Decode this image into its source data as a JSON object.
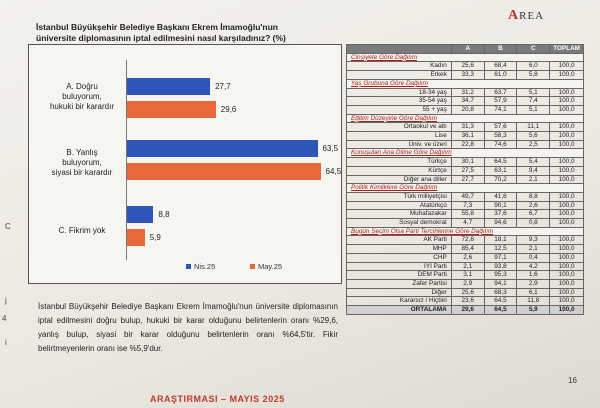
{
  "logo": {
    "mark": "A",
    "text": "REA"
  },
  "question": {
    "line1": "İstanbul Büyükşehir Belediye Başkanı Ekrem İmamoğlu'nun",
    "line2": "üniversite diplomasının iptal edilmesini nasıl karşıladınız? (%)"
  },
  "chart_data": {
    "type": "bar",
    "orientation": "horizontal",
    "categories": [
      "A. Doğru bulunuyorum, hukuki bir karardır",
      "B. Yanlış buluyorum, siyasi bir karardır",
      "C. Fikrim yok"
    ],
    "series": [
      {
        "name": "Nis.25",
        "color": "#2e56b8",
        "values": [
          27.7,
          63.5,
          8.8
        ]
      },
      {
        "name": "May.25",
        "color": "#e8683a",
        "values": [
          29.6,
          64.5,
          5.9
        ]
      }
    ],
    "category_lines": [
      [
        "A. Doğru",
        "buluyorum,",
        "hukuki bir karardır"
      ],
      [
        "B. Yanlış",
        "buluyorum,",
        "siyasi bir karardır"
      ],
      [
        "C. Fikrim yok"
      ]
    ],
    "value_labels": [
      [
        "27,7",
        "29,6"
      ],
      [
        "63,5",
        "64,5"
      ],
      [
        "8,8",
        "5,9"
      ]
    ],
    "legend": [
      "Nis.25",
      "May.25"
    ],
    "xlim": [
      0,
      70
    ]
  },
  "paragraph": "İstanbul Büyükşehir Belediye Başkanı Ekrem İmamoğlu'nun üniversite diplomasının iptal edilmesini doğru bulup, hukuki bir karar olduğunu belirtenlerin oranı %29,6, yanlış bulup, siyasi bir karar olduğunu belirtenlerin oranı %64,5'tir. Fikir belirtmeyenlerin oranı ise %5,9'dur.",
  "side_marks": [
    "C",
    "j",
    "4",
    "i"
  ],
  "footer": "ARAŞTIRMASI – MAYIS 2025",
  "page_number": "16",
  "table": {
    "headers": [
      "",
      "A",
      "B",
      "C",
      "TOPLAM"
    ],
    "rows": [
      {
        "section": "Cinsiyete Göre Dağılım"
      },
      {
        "cells": [
          "Kadın",
          "25,6",
          "68,4",
          "6,0",
          "100,0"
        ]
      },
      {
        "cells": [
          "Erkek",
          "33,3",
          "61,0",
          "5,8",
          "100,0"
        ]
      },
      {
        "section": "Yaş Grubuna Göre Dağılım"
      },
      {
        "cells": [
          "18-34 yaş",
          "31,2",
          "63,7",
          "5,1",
          "100,0"
        ]
      },
      {
        "cells": [
          "35-54 yaş",
          "34,7",
          "57,9",
          "7,4",
          "100,0"
        ]
      },
      {
        "cells": [
          "55 + yaş",
          "20,8",
          "74,1",
          "5,1",
          "100,0"
        ]
      },
      {
        "section": "Eğitim Düzeyine Göre Dağılım"
      },
      {
        "cells": [
          "Ortaokul ve altı",
          "31,3",
          "57,6",
          "11,1",
          "100,0"
        ]
      },
      {
        "cells": [
          "Lise",
          "36,1",
          "58,3",
          "5,6",
          "100,0"
        ]
      },
      {
        "cells": [
          "Üniv. ve üzeri",
          "22,8",
          "74,6",
          "2,5",
          "100,0"
        ]
      },
      {
        "section": "Konuşulan Ana Diline Göre Dağılım"
      },
      {
        "cells": [
          "Türkçe",
          "30,1",
          "64,5",
          "5,4",
          "100,0"
        ]
      },
      {
        "cells": [
          "Kürtçe",
          "27,5",
          "63,1",
          "9,4",
          "100,0"
        ]
      },
      {
        "cells": [
          "Diğer ana diller",
          "27,7",
          "70,2",
          "2,1",
          "100,0"
        ]
      },
      {
        "section": "Politik Kimliklere Göre Dağılım"
      },
      {
        "cells": [
          "Türk milliyetçisi",
          "49,7",
          "41,6",
          "8,8",
          "100,0"
        ]
      },
      {
        "cells": [
          "Atatürkçü",
          "7,3",
          "90,1",
          "2,6",
          "100,0"
        ]
      },
      {
        "cells": [
          "Muhafazakar",
          "55,8",
          "37,6",
          "6,7",
          "100,0"
        ]
      },
      {
        "cells": [
          "Sosyal demokrat",
          "4,7",
          "94,6",
          "0,8",
          "100,0"
        ]
      },
      {
        "section": "Bugün Seçim Olsa Parti Tercihlerine Göre Dağılım"
      },
      {
        "cells": [
          "AK Parti",
          "72,6",
          "18,1",
          "9,3",
          "100,0"
        ]
      },
      {
        "cells": [
          "MHP",
          "85,4",
          "12,5",
          "2,1",
          "100,0"
        ]
      },
      {
        "cells": [
          "CHP",
          "2,6",
          "97,1",
          "0,4",
          "100,0"
        ]
      },
      {
        "cells": [
          "İYİ Parti",
          "2,1",
          "93,8",
          "4,2",
          "100,0"
        ]
      },
      {
        "cells": [
          "DEM Parti",
          "3,1",
          "95,3",
          "1,6",
          "100,0"
        ]
      },
      {
        "cells": [
          "Zafer Partisi",
          "2,9",
          "94,1",
          "2,9",
          "100,0"
        ]
      },
      {
        "cells": [
          "Diğer",
          "25,6",
          "68,3",
          "6,1",
          "100,0"
        ]
      },
      {
        "cells": [
          "Kararsız / Hiçbiri",
          "23,6",
          "64,5",
          "11,8",
          "100,0"
        ]
      },
      {
        "total": true,
        "cells": [
          "ORTALAMA",
          "29,6",
          "64,5",
          "5,9",
          "100,0"
        ]
      }
    ]
  }
}
